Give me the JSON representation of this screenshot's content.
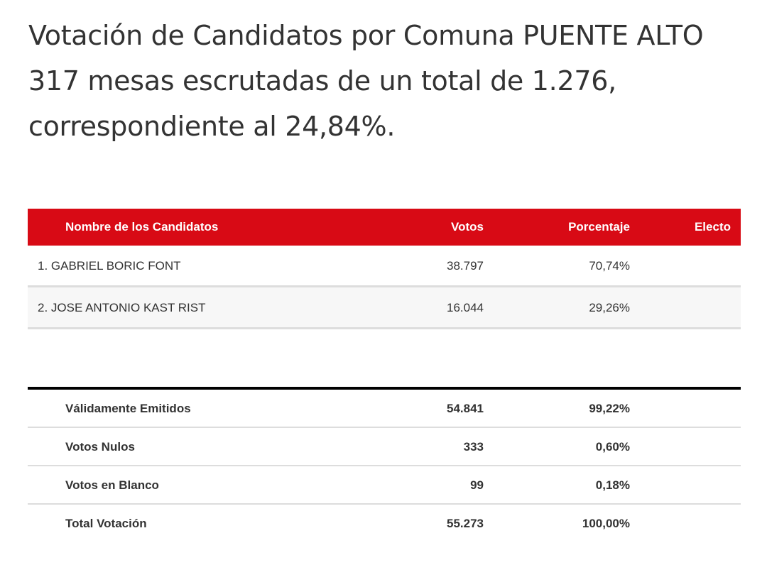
{
  "heading": {
    "line1": "Votación de Candidatos por Comuna PUENTE ALTO",
    "line2": "317 mesas escrutadas de un total de 1.276,",
    "line3": "correspondiente al 24,84%."
  },
  "candidates_table": {
    "columns": {
      "name": "Nombre de los Candidatos",
      "votes": "Votos",
      "percent": "Porcentaje",
      "elected": "Electo"
    },
    "header_color": "#d80a15",
    "rows": [
      {
        "name": "1. GABRIEL BORIC FONT",
        "votes": "38.797",
        "percent": "70,74%",
        "elected": ""
      },
      {
        "name": "2. JOSE ANTONIO KAST RIST",
        "votes": "16.044",
        "percent": "29,26%",
        "elected": ""
      }
    ]
  },
  "totals_table": {
    "rows": [
      {
        "label": "Válidamente Emitidos",
        "votes": "54.841",
        "percent": "99,22%"
      },
      {
        "label": "Votos Nulos",
        "votes": "333",
        "percent": "0,60%"
      },
      {
        "label": "Votos en Blanco",
        "votes": "99",
        "percent": "0,18%"
      },
      {
        "label": "Total Votación",
        "votes": "55.273",
        "percent": "100,00%"
      }
    ]
  }
}
